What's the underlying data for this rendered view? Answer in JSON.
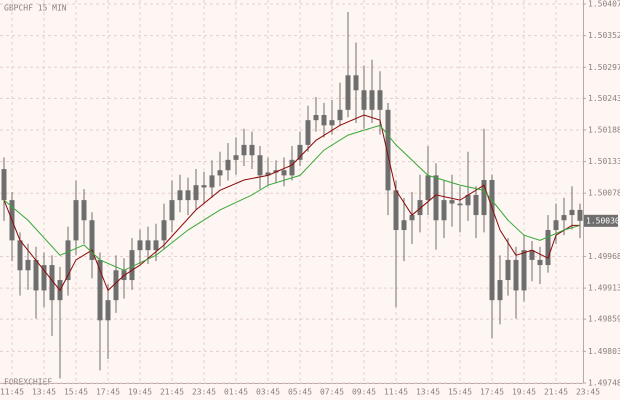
{
  "chart_data": {
    "type": "candlestick",
    "title": "GBPCHF 15 MIN",
    "watermark": "FOREXCHIEF",
    "time_labels": [
      "11:45",
      "13:45",
      "15:45",
      "17:45",
      "19:45",
      "21:45",
      "23:45",
      "01:45",
      "03:45",
      "05:45",
      "07:45",
      "09:45",
      "11:45",
      "13:45",
      "15:45",
      "17:45",
      "19:45",
      "21:45",
      "23:45"
    ],
    "ylim": [
      1.49748,
      1.50407
    ],
    "yticks": [
      1.50407,
      1.50352,
      1.50297,
      1.50243,
      1.50188,
      1.50133,
      1.50078,
      1.49968,
      1.49913,
      1.49859,
      1.49803,
      1.49748
    ],
    "grid": true,
    "last_price": {
      "value": 1.5003,
      "label": "1.50030"
    },
    "candle_color": "#6e6e6e",
    "open": [
      1.5012,
      1.50066,
      1.49996,
      1.49944,
      1.49962,
      1.49909,
      1.49953,
      1.49892,
      1.49927,
      1.49996,
      1.50066,
      1.50031,
      1.49962,
      1.49857,
      1.49892,
      1.49944,
      1.49927,
      1.49979,
      1.49996,
      1.49979,
      1.49996,
      1.50031,
      1.50066,
      1.50083,
      1.50066,
      1.50092,
      1.50088,
      1.50109,
      1.50118,
      1.50136,
      1.50144,
      1.50162,
      1.50144,
      1.50109,
      1.50114,
      1.50118,
      1.50109,
      1.50136,
      1.50162,
      1.50205,
      1.50214,
      1.50196,
      1.50205,
      1.50223,
      1.50283,
      1.50257,
      1.50223,
      1.50257,
      1.50223,
      1.50083,
      1.50014,
      1.50031,
      1.5004,
      1.50066,
      1.50109,
      1.50031,
      1.50066,
      1.5006,
      1.50057,
      1.50075,
      1.5004,
      1.50101,
      1.49892,
      1.49927,
      1.49962,
      1.49909,
      1.49979,
      1.49962,
      1.49953,
      1.50014,
      1.50031,
      1.5004,
      1.50049
    ],
    "high": [
      1.5014,
      1.5008,
      1.5001,
      1.4999,
      1.49985,
      1.49975,
      1.4997,
      1.4995,
      1.5002,
      1.501,
      1.50085,
      1.50045,
      1.49975,
      1.4992,
      1.4997,
      1.49965,
      1.5,
      1.50015,
      1.5002,
      1.50025,
      1.5006,
      1.501,
      1.5011,
      1.50105,
      1.5012,
      1.50115,
      1.50135,
      1.5015,
      1.50165,
      1.50175,
      1.5019,
      1.50185,
      1.5016,
      1.5014,
      1.50135,
      1.5014,
      1.5016,
      1.50185,
      1.5023,
      1.50245,
      1.50235,
      1.5024,
      1.5027,
      1.50393,
      1.5034,
      1.503,
      1.5031,
      1.5029,
      1.50235,
      1.501,
      1.5007,
      1.5008,
      1.5011,
      1.5016,
      1.5013,
      1.501,
      1.5011,
      1.5009,
      1.5015,
      1.5009,
      1.5019,
      1.5011,
      1.4997,
      1.5,
      1.49985,
      1.50005,
      1.49995,
      1.49985,
      1.5004,
      1.5006,
      1.5007,
      1.5009,
      1.5006
    ],
    "low": [
      1.5003,
      1.4996,
      1.499,
      1.4991,
      1.4986,
      1.4988,
      1.4983,
      1.49756,
      1.499,
      1.4997,
      1.4999,
      1.4993,
      1.4977,
      1.4979,
      1.4987,
      1.49895,
      1.4991,
      1.49955,
      1.49955,
      1.4996,
      1.4998,
      1.5001,
      1.50045,
      1.5004,
      1.5005,
      1.5006,
      1.5007,
      1.5009,
      1.501,
      1.5011,
      1.50125,
      1.5012,
      1.50085,
      1.5009,
      1.50095,
      1.5009,
      1.501,
      1.50125,
      1.5015,
      1.50185,
      1.50175,
      1.5018,
      1.50195,
      1.5021,
      1.502,
      1.5019,
      1.502,
      1.5018,
      1.5004,
      1.4988,
      1.4996,
      1.4999,
      1.5001,
      1.5004,
      1.4998,
      1.5,
      1.5002,
      1.5001,
      1.5003,
      1.5,
      1.5001,
      1.49826,
      1.4985,
      1.499,
      1.4986,
      1.4989,
      1.49925,
      1.4992,
      1.4994,
      1.4999,
      1.50005,
      1.50015,
      1.5
    ],
    "close": [
      1.50066,
      1.49996,
      1.49944,
      1.49962,
      1.49909,
      1.49953,
      1.49892,
      1.49927,
      1.49996,
      1.50066,
      1.50031,
      1.49962,
      1.49857,
      1.49892,
      1.49944,
      1.49927,
      1.49979,
      1.49996,
      1.49979,
      1.49996,
      1.50031,
      1.50066,
      1.50083,
      1.50066,
      1.50092,
      1.50088,
      1.50109,
      1.50118,
      1.50136,
      1.50144,
      1.50162,
      1.50144,
      1.50109,
      1.50114,
      1.50118,
      1.50109,
      1.50136,
      1.50162,
      1.50205,
      1.50214,
      1.50196,
      1.50205,
      1.50223,
      1.50283,
      1.50257,
      1.50223,
      1.50257,
      1.50223,
      1.50083,
      1.50014,
      1.50031,
      1.5004,
      1.50066,
      1.50109,
      1.50031,
      1.50066,
      1.5006,
      1.50057,
      1.50075,
      1.5004,
      1.50101,
      1.49892,
      1.49927,
      1.49962,
      1.49909,
      1.49979,
      1.49962,
      1.49953,
      1.50014,
      1.50031,
      1.5004,
      1.50049,
      1.5003
    ],
    "series": [
      {
        "color": "#8b0a0a",
        "x": [
          0,
          2,
          5,
          7,
          9,
          11,
          13,
          15,
          17,
          20,
          24,
          27,
          30,
          33,
          36,
          39,
          42,
          45,
          47,
          49,
          51,
          54,
          57,
          60,
          62,
          64,
          66,
          68,
          69,
          71,
          72
        ],
        "values": [
          1.50066,
          1.49996,
          1.49944,
          1.49909,
          1.49962,
          1.49979,
          1.49909,
          1.49935,
          1.49953,
          1.49988,
          1.50049,
          1.50083,
          1.50101,
          1.50109,
          1.50127,
          1.5017,
          1.50196,
          1.50214,
          1.50205,
          1.50083,
          1.5004,
          1.50075,
          1.50066,
          1.50092,
          1.50014,
          1.4997,
          1.49979,
          1.49965,
          1.50005,
          1.50022,
          1.50022
        ]
      },
      {
        "color": "#3aa83a",
        "x": [
          0,
          3,
          7,
          10,
          12,
          15,
          19,
          23,
          27,
          31,
          33,
          37,
          40,
          43,
          47,
          49,
          53,
          57,
          60,
          63,
          65,
          67,
          70,
          72
        ],
        "values": [
          1.50066,
          1.50031,
          1.4997,
          1.49988,
          1.49962,
          1.49944,
          1.4997,
          1.50014,
          1.50049,
          1.50075,
          1.50092,
          1.50109,
          1.50153,
          1.50179,
          1.50196,
          1.50162,
          1.50109,
          1.50092,
          1.50083,
          1.50031,
          1.50005,
          1.49996,
          1.50014,
          1.50022
        ]
      }
    ]
  }
}
